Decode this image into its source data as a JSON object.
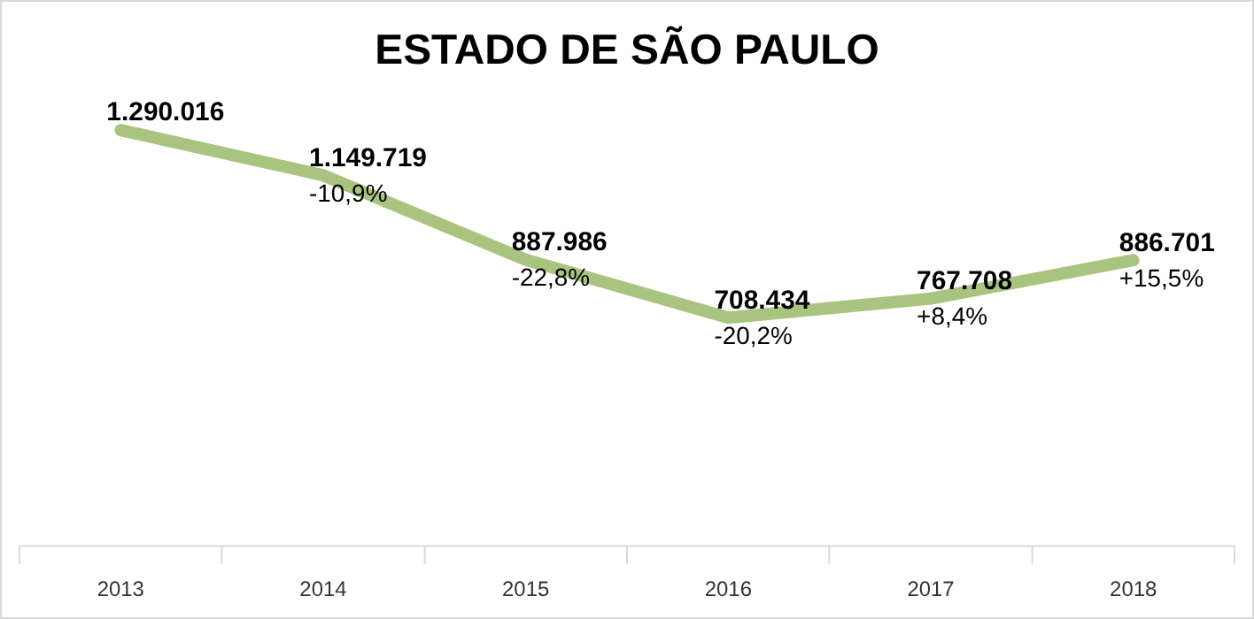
{
  "chart_data": {
    "type": "line",
    "title": "ESTADO DE SÃO PAULO",
    "categories": [
      "2013",
      "2014",
      "2015",
      "2016",
      "2017",
      "2018"
    ],
    "series": [
      {
        "color": "#a9c47f",
        "values": [
          1290016,
          1149719,
          887986,
          708434,
          767708,
          886701
        ],
        "value_labels": [
          "1.290.016",
          "1.149.719",
          "887.986",
          "708.434",
          "767.708",
          "886.701"
        ]
      }
    ],
    "tick_labels": "x",
    "grid": false,
    "legend": false,
    "marker": "none",
    "line_style": "solid",
    "annotations": [
      {
        "text": "-10,9%",
        "x": "2014",
        "y": 1149719
      },
      {
        "text": "-22,8%",
        "x": "2015",
        "y": 887986
      },
      {
        "text": "-20,2%",
        "x": "2016",
        "y": 708434
      },
      {
        "text": "+8,4%",
        "x": "2017",
        "y": 767708
      },
      {
        "text": "+15,5%",
        "x": "2018",
        "y": 886701
      }
    ]
  }
}
